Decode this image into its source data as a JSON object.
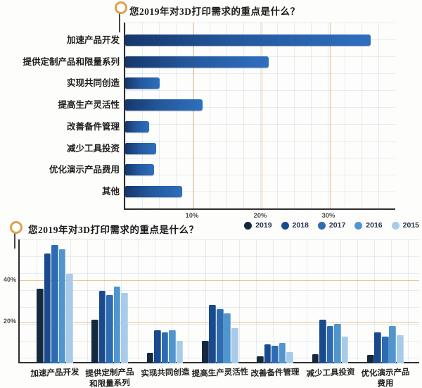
{
  "chart_data": [
    {
      "type": "bar",
      "orientation": "horizontal",
      "title": "您2019年对3D打印需求的重点是什么？",
      "categories": [
        "加速产品开发",
        "提供定制产品和限量系列",
        "实现共同创造",
        "提高生产灵活性",
        "改善备件管理",
        "减少工具投资",
        "优化演示产品费用",
        "其他"
      ],
      "values": [
        36,
        21,
        5,
        11.3,
        3.5,
        4.5,
        4.2,
        8.4
      ],
      "unit": "%",
      "x_ticks": [
        {
          "label": "10%",
          "value": 10
        },
        {
          "label": "20%",
          "value": 20
        },
        {
          "label": "30%",
          "value": 30
        }
      ],
      "xlim": [
        0,
        39.5
      ],
      "grid": true,
      "bar_gradient": [
        "#16376b",
        "#2e6fbe"
      ]
    },
    {
      "type": "bar",
      "orientation": "vertical",
      "grouped": true,
      "title": "您2019年对3D打印需求的重点是什么？",
      "categories": [
        "加速产品开发",
        "提供定制产品\n和限量系列",
        "实现共同创造",
        "提高生产灵活性",
        "改善备件管理",
        "减少工具投资",
        "优化演示产品\n费用"
      ],
      "series": [
        {
          "name": "2019",
          "color": "#14293e",
          "values": [
            36,
            21,
            5,
            11,
            3.5,
            4.5,
            4
          ]
        },
        {
          "name": "2018",
          "color": "#1a4a8e",
          "values": [
            53,
            35,
            16,
            28,
            9,
            21,
            15
          ]
        },
        {
          "name": "2017",
          "color": "#2d6cb2",
          "values": [
            57,
            33,
            15,
            26,
            8.5,
            18,
            13
          ]
        },
        {
          "name": "2016",
          "color": "#5095ce",
          "values": [
            55,
            37,
            16,
            24,
            10,
            19,
            18
          ]
        },
        {
          "name": "2015",
          "color": "#a7cbe8",
          "values": [
            43,
            34,
            11,
            17,
            5.5,
            13,
            13.5
          ]
        }
      ],
      "y_ticks": [
        {
          "label": "20%",
          "value": 20
        },
        {
          "label": "40%",
          "value": 40
        }
      ],
      "ylim": [
        0,
        60
      ],
      "legend_position": "top-right",
      "grid": true
    }
  ],
  "accent_colors": {
    "pin_ring": "#dfa14d",
    "major_gridline": "#e8ac68",
    "axis": "#2e2e2e"
  }
}
